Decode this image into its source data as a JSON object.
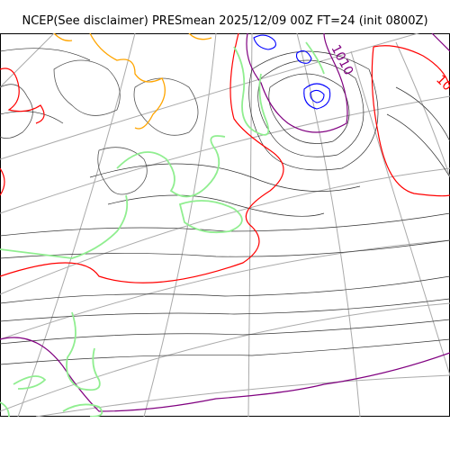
{
  "title": "NCEP(See disclaimer) PRESmean 2025/12/09 00Z FT=24 (init 0800Z)",
  "contour_labels": [
    {
      "text": "1010",
      "color": "#800080"
    },
    {
      "text": "10",
      "color": "#ff0000"
    }
  ],
  "colors": {
    "coastline": "#555555",
    "graticule": "#aaaaaa",
    "isobar": "#333333",
    "isobar_red": "#ff0000",
    "isobar_purple": "#800080",
    "isobar_blue": "#0000ff",
    "precip_green": "#90ee90",
    "precip_orange": "#ffa500"
  }
}
